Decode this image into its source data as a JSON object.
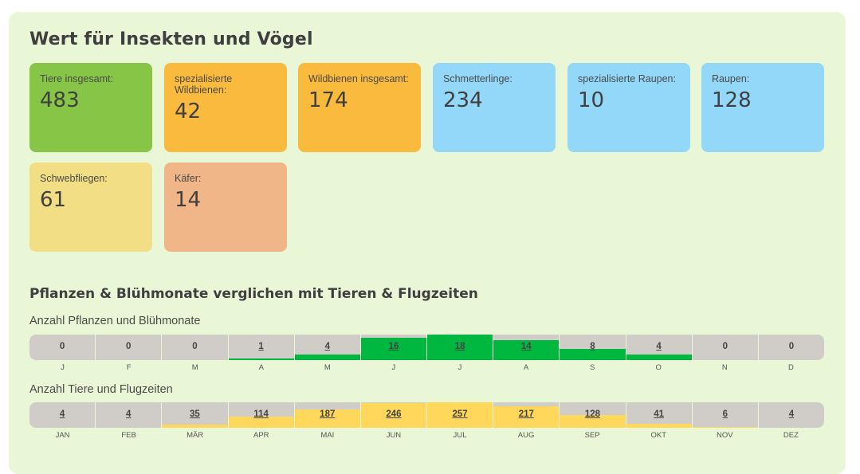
{
  "title": "Wert für Insekten und Vögel",
  "cards": [
    {
      "label": "Tiere insgesamt:",
      "value": "483",
      "color": "#86c545"
    },
    {
      "label": "spezialisierte Wildbienen:",
      "value": "42",
      "color": "#f9ba3d"
    },
    {
      "label": "Wildbienen insgesamt:",
      "value": "174",
      "color": "#f9ba3d"
    },
    {
      "label": "Schmetterlinge:",
      "value": "234",
      "color": "#93d8f8"
    },
    {
      "label": "spezialisierte Raupen:",
      "value": "10",
      "color": "#93d8f8"
    },
    {
      "label": "Raupen:",
      "value": "128",
      "color": "#93d8f8"
    },
    {
      "label": "Schwebfliegen:",
      "value": "61",
      "color": "#f2de84"
    },
    {
      "label": "Käfer:",
      "value": "14",
      "color": "#f0b688"
    }
  ],
  "section_title": "Pflanzen & Blühmonate verglichen mit Tieren & Flugzeiten",
  "plants": {
    "caption": "Anzahl Pflanzen und Blühmonate",
    "color": "#00b83f",
    "max": 18,
    "months": [
      "J",
      "F",
      "M",
      "A",
      "M",
      "J",
      "J",
      "A",
      "S",
      "O",
      "N",
      "D"
    ],
    "values": [
      0,
      0,
      0,
      1,
      4,
      16,
      18,
      14,
      8,
      4,
      0,
      0
    ]
  },
  "animals": {
    "caption": "Anzahl Tiere und Flugzeiten",
    "color": "#ffd75a",
    "max": 257,
    "months": [
      "JAN",
      "FEB",
      "MÄR",
      "APR",
      "MAI",
      "JUN",
      "JUL",
      "AUG",
      "SEP",
      "OKT",
      "NOV",
      "DEZ"
    ],
    "values": [
      4,
      4,
      35,
      114,
      187,
      246,
      257,
      217,
      128,
      41,
      6,
      4
    ]
  }
}
